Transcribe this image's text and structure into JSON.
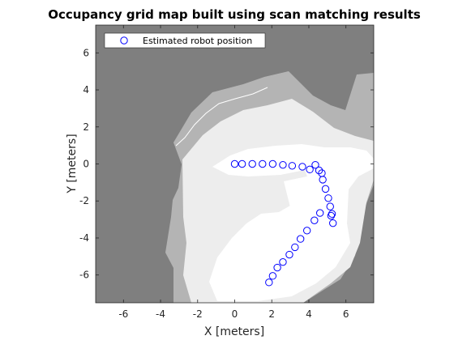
{
  "chart_data": {
    "type": "scatter",
    "title": "Occupancy grid map built using scan matching results",
    "xlabel": "X [meters]",
    "ylabel": "Y [meters]",
    "xlim": [
      -7.5,
      7.5
    ],
    "ylim": [
      -7.5,
      7.5
    ],
    "xticks": [
      -6,
      -4,
      -2,
      0,
      2,
      4,
      6
    ],
    "yticks": [
      -6,
      -4,
      -2,
      0,
      2,
      4,
      6
    ],
    "xtick_labels": [
      "-6",
      "-4",
      "-2",
      "0",
      "2",
      "4",
      "6"
    ],
    "ytick_labels": [
      "-6",
      "-4",
      "-2",
      "0",
      "2",
      "4",
      "6"
    ],
    "grid": false,
    "legend_position": "top-left",
    "background": "occupancy grid map (grayscale)",
    "series": [
      {
        "name": "Estimated robot position",
        "marker": "circle",
        "color": "#0000ff",
        "points": [
          [
            0.0,
            0.0
          ],
          [
            0.4,
            0.0
          ],
          [
            0.95,
            0.0
          ],
          [
            1.5,
            0.0
          ],
          [
            2.05,
            0.0
          ],
          [
            2.6,
            -0.05
          ],
          [
            3.1,
            -0.1
          ],
          [
            3.65,
            -0.15
          ],
          [
            4.05,
            -0.3
          ],
          [
            4.35,
            -0.05
          ],
          [
            4.55,
            -0.35
          ],
          [
            4.7,
            -0.5
          ],
          [
            4.75,
            -0.85
          ],
          [
            4.9,
            -1.35
          ],
          [
            5.05,
            -1.85
          ],
          [
            5.15,
            -2.3
          ],
          [
            5.25,
            -2.7
          ],
          [
            5.3,
            -3.2
          ],
          [
            5.2,
            -2.8
          ],
          [
            4.6,
            -2.65
          ],
          [
            4.3,
            -3.05
          ],
          [
            3.9,
            -3.6
          ],
          [
            3.55,
            -4.05
          ],
          [
            3.25,
            -4.5
          ],
          [
            2.95,
            -4.9
          ],
          [
            2.6,
            -5.3
          ],
          [
            2.3,
            -5.6
          ],
          [
            2.05,
            -6.05
          ],
          [
            1.85,
            -6.4
          ]
        ]
      }
    ]
  }
}
